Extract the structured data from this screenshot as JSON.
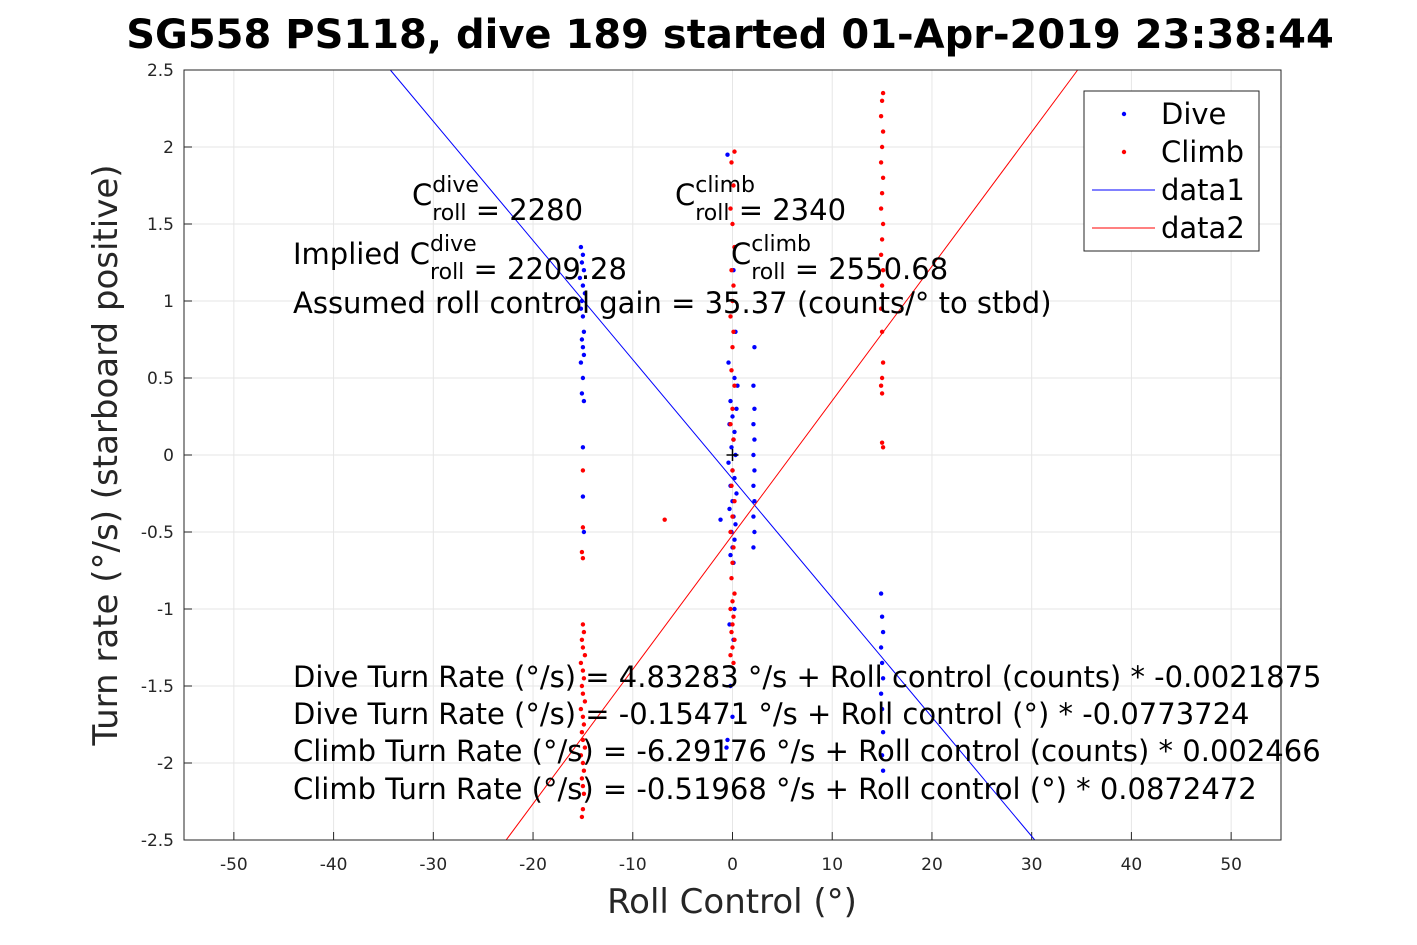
{
  "chart_data": {
    "type": "scatter",
    "title": "SG558 PS118, dive 189 started 01-Apr-2019 23:38:44",
    "xlabel": "Roll Control (°)",
    "ylabel": "Turn rate (°/s) (starboard positive)",
    "xlim": [
      -55,
      55
    ],
    "ylim": [
      -2.5,
      2.5
    ],
    "xticks": [
      -50,
      -40,
      -30,
      -20,
      -10,
      0,
      10,
      20,
      30,
      40,
      50
    ],
    "yticks": [
      -2.5,
      -2,
      -1.5,
      -1,
      -0.5,
      0,
      0.5,
      1,
      1.5,
      2,
      2.5
    ],
    "grid": true,
    "legend_position": "top-right",
    "legend": [
      {
        "label": "Dive",
        "color": "#0000ff",
        "marker": "dot"
      },
      {
        "label": "Climb",
        "color": "#ff0000",
        "marker": "dot"
      },
      {
        "label": "data1",
        "color": "#0000ff",
        "marker": "line"
      },
      {
        "label": "data2",
        "color": "#ff0000",
        "marker": "line"
      }
    ],
    "series": [
      {
        "name": "Dive",
        "color": "#0000ff",
        "points": [
          [
            -15.2,
            1.35
          ],
          [
            -15.0,
            1.3
          ],
          [
            -15.1,
            1.25
          ],
          [
            -14.9,
            1.2
          ],
          [
            -15.3,
            1.15
          ],
          [
            -15.0,
            1.1
          ],
          [
            -14.8,
            1.05
          ],
          [
            -15.1,
            1.0
          ],
          [
            -15.2,
            0.95
          ],
          [
            -15.0,
            0.9
          ],
          [
            -14.9,
            0.8
          ],
          [
            -15.1,
            0.75
          ],
          [
            -15.0,
            0.7
          ],
          [
            -14.9,
            0.65
          ],
          [
            -15.2,
            0.6
          ],
          [
            -15.0,
            0.5
          ],
          [
            -15.1,
            0.4
          ],
          [
            -14.9,
            0.35
          ],
          [
            -15.0,
            0.05
          ],
          [
            -15.0,
            -0.27
          ],
          [
            -14.9,
            -0.5
          ],
          [
            -0.5,
            1.95
          ],
          [
            0.1,
            1.2
          ],
          [
            0.3,
            0.8
          ],
          [
            -0.4,
            0.6
          ],
          [
            0.2,
            0.5
          ],
          [
            0.5,
            0.45
          ],
          [
            -0.2,
            0.35
          ],
          [
            0.4,
            0.3
          ],
          [
            0.0,
            0.25
          ],
          [
            -0.3,
            0.2
          ],
          [
            0.2,
            0.15
          ],
          [
            0.1,
            0.1
          ],
          [
            -0.1,
            0.05
          ],
          [
            0.3,
            0.0
          ],
          [
            -0.4,
            -0.05
          ],
          [
            0.0,
            -0.1
          ],
          [
            0.2,
            -0.15
          ],
          [
            -0.2,
            -0.2
          ],
          [
            0.4,
            -0.25
          ],
          [
            0.0,
            -0.3
          ],
          [
            -0.3,
            -0.35
          ],
          [
            0.1,
            -0.4
          ],
          [
            0.3,
            -0.45
          ],
          [
            -0.1,
            -0.5
          ],
          [
            0.2,
            -0.55
          ],
          [
            0.0,
            -0.6
          ],
          [
            -0.2,
            -0.65
          ],
          [
            0.1,
            -0.7
          ],
          [
            -1.2,
            -0.42
          ],
          [
            0.2,
            -1.0
          ],
          [
            -0.3,
            -1.1
          ],
          [
            0.1,
            -1.2
          ],
          [
            -0.2,
            -1.5
          ],
          [
            0.0,
            -1.7
          ],
          [
            -0.5,
            -1.85
          ],
          [
            2.2,
            0.7
          ],
          [
            2.1,
            0.45
          ],
          [
            2.2,
            0.3
          ],
          [
            2.1,
            0.2
          ],
          [
            2.2,
            0.1
          ],
          [
            2.1,
            0.0
          ],
          [
            2.2,
            -0.1
          ],
          [
            2.1,
            -0.2
          ],
          [
            2.2,
            -0.3
          ],
          [
            2.1,
            -0.4
          ],
          [
            2.2,
            -0.5
          ],
          [
            2.1,
            -0.6
          ],
          [
            14.9,
            -0.9
          ],
          [
            15.0,
            -1.05
          ],
          [
            15.1,
            -1.15
          ],
          [
            14.9,
            -1.25
          ],
          [
            15.0,
            -1.35
          ],
          [
            15.1,
            -1.45
          ],
          [
            14.9,
            -1.55
          ],
          [
            15.0,
            -1.65
          ],
          [
            15.1,
            -1.8
          ],
          [
            15.0,
            -1.95
          ],
          [
            15.1,
            -2.05
          ],
          [
            -0.6,
            -1.9
          ]
        ]
      },
      {
        "name": "Climb",
        "color": "#ff0000",
        "points": [
          [
            15.1,
            2.35
          ],
          [
            15.0,
            2.3
          ],
          [
            14.9,
            2.2
          ],
          [
            15.1,
            2.1
          ],
          [
            15.0,
            2.0
          ],
          [
            14.9,
            1.9
          ],
          [
            15.1,
            1.8
          ],
          [
            15.0,
            1.7
          ],
          [
            14.9,
            1.6
          ],
          [
            15.1,
            1.5
          ],
          [
            15.0,
            1.4
          ],
          [
            14.9,
            1.3
          ],
          [
            15.1,
            1.2
          ],
          [
            15.0,
            1.1
          ],
          [
            14.9,
            0.95
          ],
          [
            15.0,
            0.8
          ],
          [
            15.1,
            0.6
          ],
          [
            15.0,
            0.5
          ],
          [
            14.9,
            0.45
          ],
          [
            15.0,
            0.4
          ],
          [
            15.0,
            0.08
          ],
          [
            15.1,
            0.05
          ],
          [
            0.2,
            1.97
          ],
          [
            -0.1,
            1.9
          ],
          [
            0.1,
            1.75
          ],
          [
            -0.2,
            1.6
          ],
          [
            0.0,
            1.5
          ],
          [
            0.2,
            1.35
          ],
          [
            -0.1,
            1.2
          ],
          [
            0.1,
            1.1
          ],
          [
            0.0,
            1.0
          ],
          [
            -0.2,
            0.9
          ],
          [
            0.1,
            0.8
          ],
          [
            0.0,
            0.7
          ],
          [
            -0.1,
            0.55
          ],
          [
            0.2,
            0.45
          ],
          [
            0.0,
            0.3
          ],
          [
            -0.2,
            0.2
          ],
          [
            0.1,
            0.1
          ],
          [
            0.0,
            -0.1
          ],
          [
            -0.1,
            -0.2
          ],
          [
            0.2,
            -0.3
          ],
          [
            0.0,
            -0.4
          ],
          [
            -0.2,
            -0.5
          ],
          [
            0.1,
            -0.6
          ],
          [
            0.0,
            -0.7
          ],
          [
            -0.1,
            -0.8
          ],
          [
            0.2,
            -0.9
          ],
          [
            0.0,
            -0.95
          ],
          [
            -0.2,
            -1.0
          ],
          [
            0.1,
            -1.05
          ],
          [
            0.0,
            -1.1
          ],
          [
            -0.1,
            -1.15
          ],
          [
            0.2,
            -1.2
          ],
          [
            0.0,
            -1.25
          ],
          [
            -0.2,
            -1.3
          ],
          [
            0.1,
            -1.35
          ],
          [
            -6.8,
            -0.42
          ],
          [
            -15.0,
            -1.1
          ],
          [
            -14.9,
            -1.15
          ],
          [
            -15.1,
            -1.2
          ],
          [
            -15.0,
            -1.25
          ],
          [
            -14.8,
            -1.3
          ],
          [
            -15.2,
            -1.35
          ],
          [
            -15.0,
            -1.4
          ],
          [
            -14.9,
            -1.45
          ],
          [
            -15.1,
            -1.5
          ],
          [
            -15.0,
            -1.55
          ],
          [
            -14.8,
            -1.6
          ],
          [
            -15.2,
            -1.65
          ],
          [
            -15.0,
            -1.7
          ],
          [
            -14.9,
            -1.75
          ],
          [
            -15.1,
            -1.8
          ],
          [
            -15.0,
            -1.85
          ],
          [
            -14.8,
            -1.9
          ],
          [
            -15.2,
            -1.95
          ],
          [
            -15.0,
            -2.0
          ],
          [
            -14.9,
            -2.05
          ],
          [
            -15.1,
            -2.1
          ],
          [
            -15.0,
            -2.15
          ],
          [
            -14.9,
            -2.2
          ],
          [
            -15.0,
            -2.3
          ],
          [
            -15.1,
            -2.35
          ],
          [
            -15.0,
            -0.47
          ],
          [
            -15.1,
            -0.63
          ],
          [
            -15.0,
            -0.67
          ],
          [
            -15.0,
            -0.1
          ]
        ]
      },
      {
        "name": "data1",
        "color": "#0000ff",
        "type": "line",
        "intercept": -0.15471,
        "slope": -0.0773724
      },
      {
        "name": "data2",
        "color": "#ff0000",
        "type": "line",
        "intercept": -0.51968,
        "slope": 0.0872472
      }
    ],
    "annotations": [
      {
        "parts": [
          {
            "t": "C"
          },
          {
            "sup": "dive",
            "sub": "roll"
          },
          {
            "t": " = 2280"
          }
        ]
      },
      {
        "parts": [
          {
            "t": "C"
          },
          {
            "sup": "climb",
            "sub": "roll"
          },
          {
            "t": " = 2340"
          }
        ]
      },
      {
        "parts": [
          {
            "t": "Implied C"
          },
          {
            "sup": "dive",
            "sub": "roll"
          },
          {
            "t": " = 2209.28"
          }
        ]
      },
      {
        "parts": [
          {
            "t": "C"
          },
          {
            "sup": "climb",
            "sub": "roll"
          },
          {
            "t": " = 2550.68"
          }
        ]
      },
      {
        "parts": [
          {
            "t": "Assumed roll control gain = 35.37 (counts/° to stbd)"
          }
        ]
      },
      {
        "parts": [
          {
            "t": "Dive Turn Rate (°/s) = 4.83283 °/s + Roll control (counts) * -0.0021875"
          }
        ]
      },
      {
        "parts": [
          {
            "t": "Dive Turn Rate (°/s) = -0.15471 °/s + Roll control (°) * -0.0773724"
          }
        ]
      },
      {
        "parts": [
          {
            "t": "Climb Turn Rate (°/s) = -6.29176 °/s + Roll control (counts) * 0.002466"
          }
        ]
      },
      {
        "parts": [
          {
            "t": "Climb Turn Rate (°/s) = -0.51968 °/s + Roll control (°) * 0.0872472"
          }
        ]
      }
    ]
  }
}
